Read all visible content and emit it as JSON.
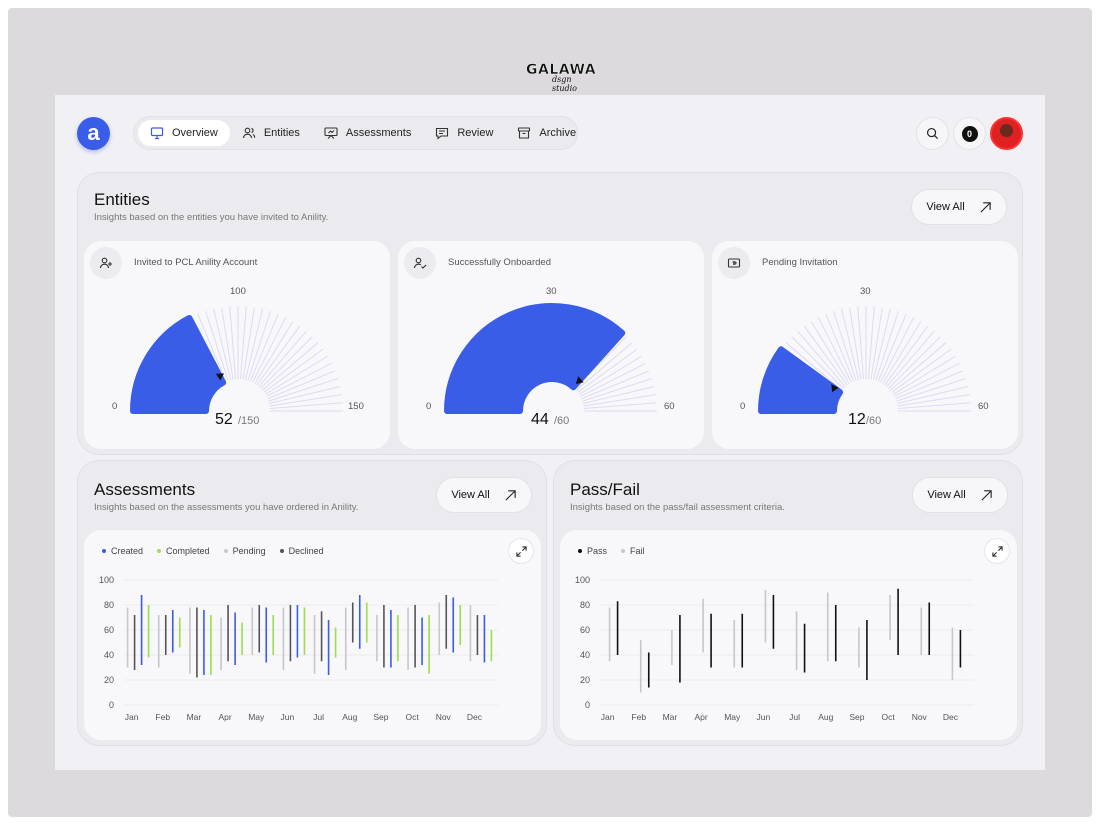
{
  "brand": {
    "name": "GALAWA",
    "sub": "dsgn studio"
  },
  "logo": {
    "letter": "a"
  },
  "nav": {
    "items": [
      {
        "label": "Overview",
        "icon": "monitor-icon",
        "active": true
      },
      {
        "label": "Entities",
        "icon": "users-icon",
        "active": false
      },
      {
        "label": "Assessments",
        "icon": "presentation-icon",
        "active": false
      },
      {
        "label": "Review",
        "icon": "message-icon",
        "active": false
      },
      {
        "label": "Archive",
        "icon": "archive-icon",
        "active": false
      }
    ]
  },
  "header": {
    "notifications": "0"
  },
  "colors": {
    "accent": "#3a5de8",
    "completed": "#9be04a",
    "pending": "#c8c7cc",
    "declined": "#555555",
    "pass": "#111111",
    "fail": "#c8c7cc"
  },
  "entities": {
    "title": "Entities",
    "subtitle": "Insights based on the entities you have invited to Anility.",
    "view_all": "View All",
    "cards": [
      {
        "label": "Invited to PCL Anility Account",
        "icon": "user-plus-icon",
        "value": 52,
        "max": 150,
        "value_text": "52",
        "den_text": "/150",
        "min_tick": "0",
        "top_tick": "100",
        "max_tick": "150"
      },
      {
        "label": "Successfully Onboarded",
        "icon": "user-check-icon",
        "value": 44,
        "max": 60,
        "value_text": "44",
        "den_text": "/60",
        "min_tick": "0",
        "top_tick": "30",
        "max_tick": "60"
      },
      {
        "label": "Pending Invitation",
        "icon": "ticket-icon",
        "value": 12,
        "max": 60,
        "value_text": "12",
        "den_text": "/60",
        "min_tick": "0",
        "top_tick": "30",
        "max_tick": "60"
      }
    ]
  },
  "assessments": {
    "title": "Assessments",
    "subtitle": "Insights based on the assessments you have ordered in Anility.",
    "view_all": "View All",
    "legend": [
      {
        "label": "Created",
        "color": "#3a5de8"
      },
      {
        "label": "Completed",
        "color": "#9be04a"
      },
      {
        "label": "Pending",
        "color": "#c8c7cc"
      },
      {
        "label": "Declined",
        "color": "#555555"
      }
    ]
  },
  "passfail": {
    "title": "Pass/Fail",
    "subtitle": "Insights based on the pass/fail assessment criteria.",
    "view_all": "View All",
    "legend": [
      {
        "label": "Pass",
        "color": "#111111"
      },
      {
        "label": "Fail",
        "color": "#c8c7cc"
      }
    ]
  },
  "chart_data": [
    {
      "type": "bar",
      "subtype": "floating-range",
      "categories": [
        "Jan",
        "Feb",
        "Mar",
        "Apr",
        "May",
        "Jun",
        "Jul",
        "Aug",
        "Sep",
        "Oct",
        "Nov",
        "Dec"
      ],
      "y_ticks": [
        "0",
        "20",
        "40",
        "60",
        "80",
        "100"
      ],
      "ylim": [
        0,
        100
      ],
      "series": [
        {
          "name": "Pending",
          "ranges": [
            [
              30,
              78
            ],
            [
              30,
              72
            ],
            [
              25,
              78
            ],
            [
              28,
              70
            ],
            [
              40,
              78
            ],
            [
              28,
              78
            ],
            [
              25,
              72
            ],
            [
              28,
              78
            ],
            [
              35,
              72
            ],
            [
              28,
              78
            ],
            [
              40,
              82
            ],
            [
              35,
              80
            ]
          ]
        },
        {
          "name": "Declined",
          "ranges": [
            [
              28,
              72
            ],
            [
              40,
              72
            ],
            [
              22,
              78
            ],
            [
              35,
              80
            ],
            [
              42,
              80
            ],
            [
              35,
              80
            ],
            [
              35,
              75
            ],
            [
              50,
              82
            ],
            [
              30,
              80
            ],
            [
              30,
              80
            ],
            [
              45,
              88
            ],
            [
              40,
              72
            ]
          ]
        },
        {
          "name": "Created",
          "ranges": [
            [
              32,
              88
            ],
            [
              42,
              76
            ],
            [
              24,
              76
            ],
            [
              32,
              74
            ],
            [
              34,
              78
            ],
            [
              38,
              80
            ],
            [
              24,
              68
            ],
            [
              45,
              88
            ],
            [
              30,
              76
            ],
            [
              32,
              70
            ],
            [
              42,
              86
            ],
            [
              34,
              72
            ]
          ]
        },
        {
          "name": "Completed",
          "ranges": [
            [
              38,
              80
            ],
            [
              46,
              70
            ],
            [
              24,
              72
            ],
            [
              40,
              66
            ],
            [
              40,
              72
            ],
            [
              40,
              78
            ],
            [
              38,
              62
            ],
            [
              50,
              82
            ],
            [
              35,
              72
            ],
            [
              25,
              72
            ],
            [
              48,
              80
            ],
            [
              35,
              60
            ]
          ]
        }
      ]
    },
    {
      "type": "bar",
      "subtype": "floating-range",
      "categories": [
        "Jan",
        "Feb",
        "Mar",
        "Apr",
        "May",
        "Jun",
        "Jul",
        "Aug",
        "Sep",
        "Oct",
        "Nov",
        "Dec"
      ],
      "y_ticks": [
        "0",
        "20",
        "40",
        "60",
        "80",
        "100"
      ],
      "ylim": [
        0,
        100
      ],
      "series": [
        {
          "name": "Fail",
          "ranges": [
            [
              35,
              78
            ],
            [
              10,
              52
            ],
            [
              32,
              60
            ],
            [
              42,
              85
            ],
            [
              30,
              68
            ],
            [
              50,
              92
            ],
            [
              28,
              75
            ],
            [
              35,
              90
            ],
            [
              30,
              62
            ],
            [
              52,
              88
            ],
            [
              40,
              78
            ],
            [
              20,
              62
            ]
          ]
        },
        {
          "name": "Pass",
          "ranges": [
            [
              40,
              83
            ],
            [
              14,
              42
            ],
            [
              18,
              72
            ],
            [
              30,
              73
            ],
            [
              30,
              73
            ],
            [
              45,
              88
            ],
            [
              26,
              65
            ],
            [
              35,
              80
            ],
            [
              20,
              68
            ],
            [
              40,
              93
            ],
            [
              40,
              82
            ],
            [
              30,
              60
            ]
          ]
        }
      ]
    }
  ]
}
